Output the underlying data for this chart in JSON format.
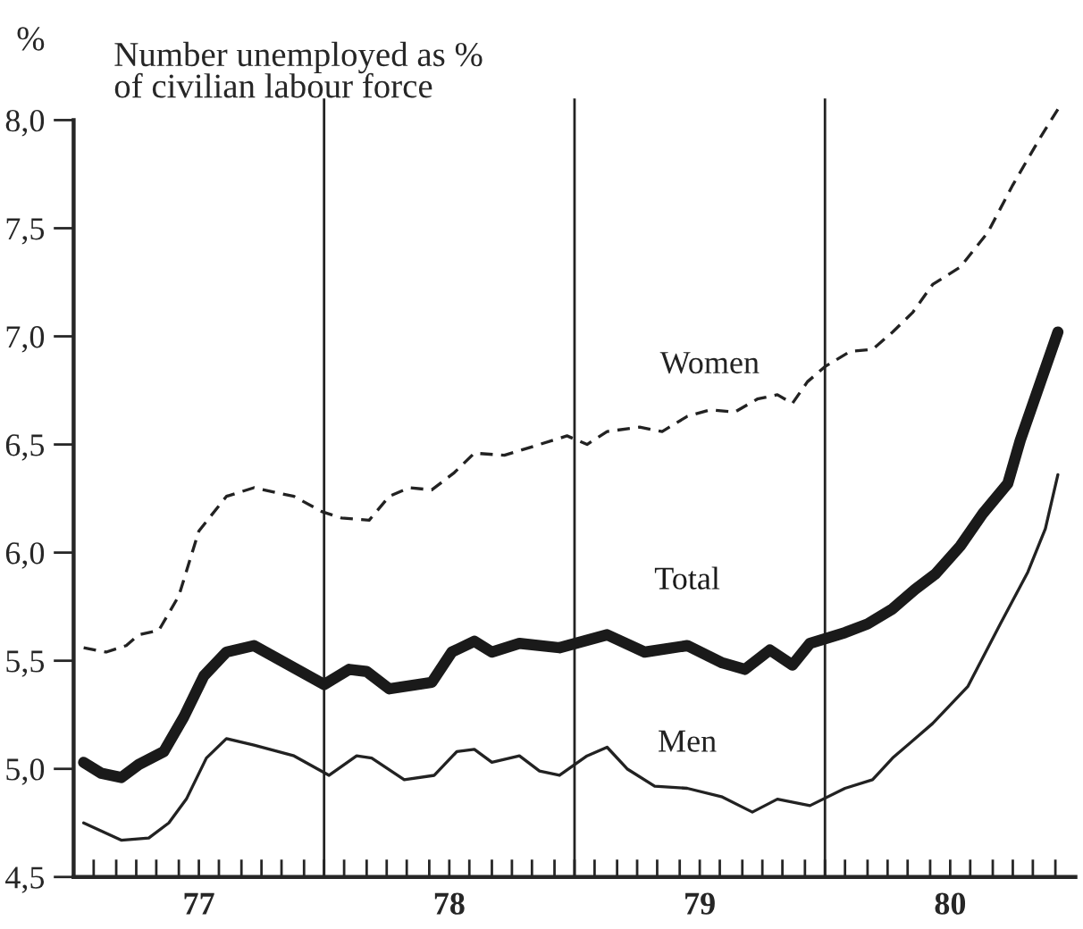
{
  "chart_data": {
    "type": "line",
    "ylabel": "%",
    "subtitle": "Number unemployed as %\nof civilian labour force",
    "xlim": [
      76.5,
      80.5
    ],
    "ylim": [
      4.5,
      8.1
    ],
    "yticks": [
      {
        "value": 4.5,
        "label": "4,5"
      },
      {
        "value": 5.0,
        "label": "5,0"
      },
      {
        "value": 5.5,
        "label": "5,5"
      },
      {
        "value": 6.0,
        "label": "6,0"
      },
      {
        "value": 6.5,
        "label": "6,5"
      },
      {
        "value": 7.0,
        "label": "7,0"
      },
      {
        "value": 7.5,
        "label": "7,5"
      },
      {
        "value": 8.0,
        "label": "8,0"
      }
    ],
    "xticks": [
      {
        "value": 76.58,
        "label": null
      },
      {
        "value": 76.67,
        "label": null
      },
      {
        "value": 76.75,
        "label": null
      },
      {
        "value": 76.83,
        "label": null
      },
      {
        "value": 76.92,
        "label": null
      },
      77,
      {
        "value": 77.08,
        "label": null
      },
      {
        "value": 77.17,
        "label": null
      },
      {
        "value": 77.25,
        "label": null
      },
      {
        "value": 77.33,
        "label": null
      },
      {
        "value": 77.42,
        "label": null
      },
      {
        "value": 77.5,
        "label": null
      },
      {
        "value": 77.58,
        "label": null
      },
      {
        "value": 77.67,
        "label": null
      },
      {
        "value": 77.75,
        "label": null
      },
      {
        "value": 77.83,
        "label": null
      },
      {
        "value": 77.92,
        "label": null
      },
      78,
      {
        "value": 78.08,
        "label": null
      },
      {
        "value": 78.17,
        "label": null
      },
      {
        "value": 78.25,
        "label": null
      },
      {
        "value": 78.33,
        "label": null
      },
      {
        "value": 78.42,
        "label": null
      },
      {
        "value": 78.5,
        "label": null
      },
      {
        "value": 78.58,
        "label": null
      },
      {
        "value": 78.67,
        "label": null
      },
      {
        "value": 78.75,
        "label": null
      },
      {
        "value": 78.83,
        "label": null
      },
      {
        "value": 78.92,
        "label": null
      },
      79,
      {
        "value": 79.08,
        "label": null
      },
      {
        "value": 79.17,
        "label": null
      },
      {
        "value": 79.25,
        "label": null
      },
      {
        "value": 79.33,
        "label": null
      },
      {
        "value": 79.42,
        "label": null
      },
      {
        "value": 79.5,
        "label": null
      },
      {
        "value": 79.58,
        "label": null
      },
      {
        "value": 79.67,
        "label": null
      },
      {
        "value": 79.75,
        "label": null
      },
      {
        "value": 79.83,
        "label": null
      },
      {
        "value": 79.92,
        "label": null
      },
      80,
      {
        "value": 80.08,
        "label": null
      },
      {
        "value": 80.17,
        "label": null
      },
      {
        "value": 80.25,
        "label": null
      },
      {
        "value": 80.33,
        "label": null
      },
      {
        "value": 80.42,
        "label": null
      }
    ],
    "grid": false,
    "legend": false,
    "ref_lines": [
      {
        "axis": "x",
        "value": 77.5,
        "color": "#222222"
      },
      {
        "axis": "x",
        "value": 78.5,
        "color": "#222222"
      },
      {
        "axis": "x",
        "value": 79.5,
        "color": "#222222"
      }
    ],
    "series": [
      {
        "name": "Women",
        "color": "#222222",
        "line_style": "dashed",
        "x": [
          76.54,
          76.63,
          76.71,
          76.76,
          76.84,
          76.92,
          77.0,
          77.11,
          77.22,
          77.38,
          77.49,
          77.57,
          77.68,
          77.76,
          77.84,
          77.93,
          78.02,
          78.1,
          78.22,
          78.36,
          78.47,
          78.55,
          78.63,
          78.76,
          78.85,
          78.95,
          79.04,
          79.14,
          79.23,
          79.31,
          79.37,
          79.43,
          79.5,
          79.6,
          79.69,
          79.77,
          79.85,
          79.93,
          80.04,
          80.15,
          80.25,
          80.36,
          80.43
        ],
        "values": [
          5.56,
          5.54,
          5.57,
          5.62,
          5.64,
          5.8,
          6.1,
          6.26,
          6.3,
          6.26,
          6.19,
          6.16,
          6.15,
          6.26,
          6.3,
          6.29,
          6.37,
          6.46,
          6.45,
          6.5,
          6.54,
          6.5,
          6.56,
          6.58,
          6.56,
          6.63,
          6.66,
          6.65,
          6.71,
          6.73,
          6.69,
          6.79,
          6.86,
          6.93,
          6.94,
          7.02,
          7.11,
          7.24,
          7.32,
          7.48,
          7.7,
          7.92,
          8.05
        ]
      },
      {
        "name": "Total",
        "color": "#1a1a1a",
        "line_style": "solid",
        "x": [
          76.54,
          76.61,
          76.69,
          76.76,
          76.86,
          76.94,
          77.02,
          77.11,
          77.22,
          77.36,
          77.5,
          77.6,
          77.67,
          77.76,
          77.93,
          78.01,
          78.1,
          78.17,
          78.28,
          78.44,
          78.63,
          78.78,
          78.95,
          79.09,
          79.18,
          79.28,
          79.37,
          79.44,
          79.58,
          79.67,
          79.77,
          79.86,
          79.94,
          80.04,
          80.13,
          80.23,
          80.28,
          80.43
        ],
        "values": [
          5.03,
          4.98,
          4.96,
          5.02,
          5.08,
          5.24,
          5.43,
          5.54,
          5.57,
          5.48,
          5.39,
          5.46,
          5.45,
          5.37,
          5.4,
          5.54,
          5.59,
          5.54,
          5.58,
          5.56,
          5.62,
          5.54,
          5.57,
          5.49,
          5.46,
          5.55,
          5.48,
          5.58,
          5.63,
          5.67,
          5.74,
          5.83,
          5.9,
          6.03,
          6.18,
          6.32,
          6.52,
          7.02
        ]
      },
      {
        "name": "Men",
        "color": "#222222",
        "line_style": "solid",
        "x": [
          76.54,
          76.69,
          76.8,
          76.88,
          76.95,
          77.03,
          77.11,
          77.22,
          77.38,
          77.52,
          77.63,
          77.69,
          77.82,
          77.94,
          78.03,
          78.1,
          78.17,
          78.28,
          78.36,
          78.44,
          78.55,
          78.63,
          78.71,
          78.82,
          78.95,
          79.09,
          79.21,
          79.31,
          79.44,
          79.58,
          79.69,
          79.77,
          79.93,
          80.07,
          80.2,
          80.31,
          80.38,
          80.43
        ],
        "values": [
          4.75,
          4.67,
          4.68,
          4.75,
          4.86,
          5.05,
          5.14,
          5.11,
          5.06,
          4.97,
          5.06,
          5.05,
          4.95,
          4.97,
          5.08,
          5.09,
          5.03,
          5.06,
          4.99,
          4.97,
          5.06,
          5.1,
          5.0,
          4.92,
          4.91,
          4.87,
          4.8,
          4.86,
          4.83,
          4.91,
          4.95,
          5.05,
          5.21,
          5.38,
          5.67,
          5.91,
          6.11,
          6.36
        ]
      }
    ]
  }
}
